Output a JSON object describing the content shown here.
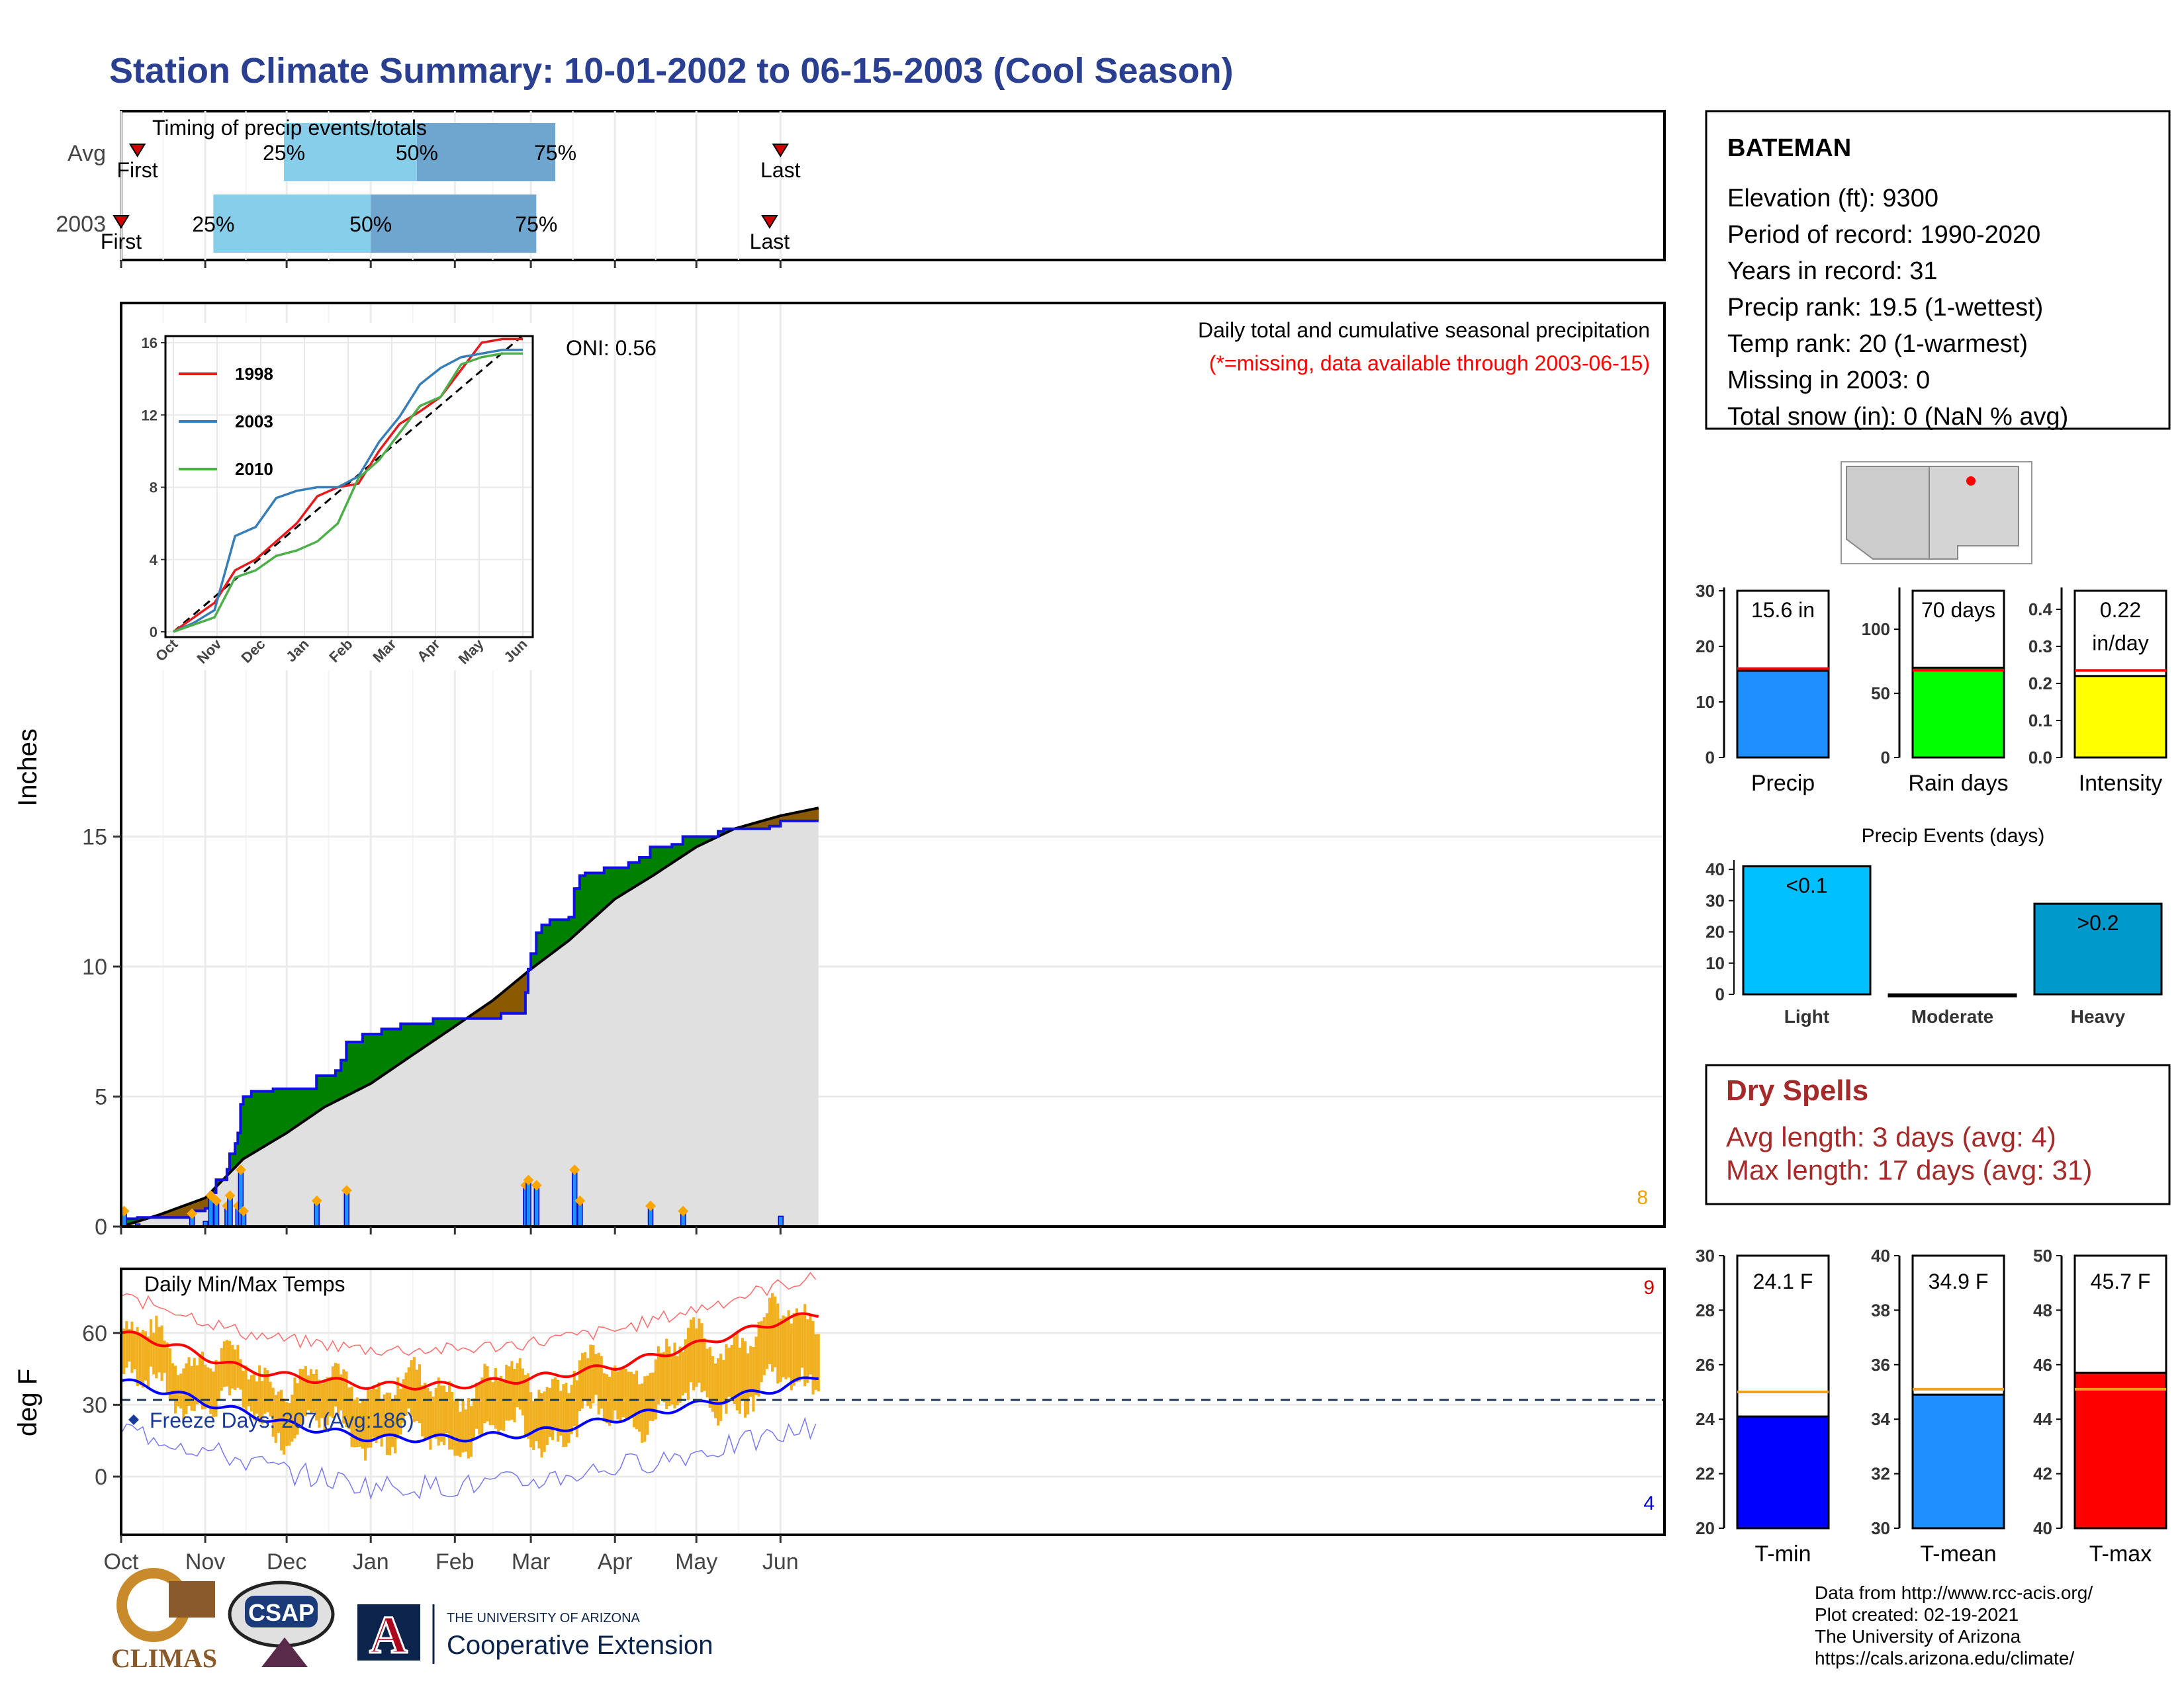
{
  "title": "Station Climate Summary: 10-01-2002 to 06-15-2003 (Cool Season)",
  "colors": {
    "title": "#2a3f8f",
    "precip_blue": "#1f8fff",
    "green": "#008000",
    "brown": "#8b5a00",
    "grey_area": "#e0e0e0",
    "band_light": "#87ceeb",
    "band_dark": "#6ea6cf",
    "orange": "#f0b020",
    "red": "#ff0000",
    "blue": "#0000ff",
    "dry_red": "#a52a2a"
  },
  "timing_panel": {
    "label": "Timing of precip events/totals",
    "rows": [
      {
        "name": "Avg",
        "first_label": "First",
        "last_label": "Last",
        "p25": "25%",
        "p50": "50%",
        "p75": "75%",
        "first_date": "2002-10-07",
        "q25": "2002-11-30",
        "q50": "2003-01-18",
        "q75": "2003-03-10",
        "last_date": "2003-06-01"
      },
      {
        "name": "2003",
        "first_label": "First",
        "last_label": "Last",
        "p25": "25%",
        "p50": "50%",
        "p75": "75%",
        "first_date": "2002-10-01",
        "q25": "2002-11-04",
        "q50": "2003-01-01",
        "q75": "2003-03-03",
        "last_date": "2003-05-28"
      }
    ]
  },
  "precip_panel": {
    "ylabel": "Inches",
    "yticks": [
      0,
      5,
      10,
      15
    ],
    "heading": "Daily total and cumulative seasonal precipitation",
    "missing_note": "(*=missing, data available through 2003-06-15)",
    "oni_label": "ONI: 0.56",
    "corner_count": "8"
  },
  "inset": {
    "yticks": [
      0,
      4,
      8,
      12,
      16
    ],
    "xticks": [
      "Oct",
      "Nov",
      "Dec",
      "Jan",
      "Feb",
      "Mar",
      "Apr",
      "May",
      "Jun"
    ],
    "legend": [
      {
        "name": "1998",
        "color": "#e41a1c"
      },
      {
        "name": "2003",
        "color": "#377eb8"
      },
      {
        "name": "2010",
        "color": "#4daf4a"
      }
    ]
  },
  "temp_panel": {
    "label": "Daily Min/Max Temps",
    "ylabel": "deg F",
    "yticks": [
      0,
      30,
      60
    ],
    "freeze_label": "Freeze Days: 207 (Avg:186)",
    "count_high": "9",
    "count_low": "4"
  },
  "xaxis_months": [
    "Oct",
    "Nov",
    "Dec",
    "Jan",
    "Feb",
    "Mar",
    "Apr",
    "May",
    "Jun"
  ],
  "station": {
    "name": "BATEMAN",
    "lines": [
      "Elevation (ft): 9300",
      "Period of record: 1990-2020",
      "Years in record: 31",
      "Precip rank: 19.5 (1-wettest)",
      "Temp rank: 20 (1-warmest)",
      "Missing in 2003: 0",
      "Total snow (in): 0 (NaN % avg)"
    ]
  },
  "summary_bars": [
    {
      "label": "Precip",
      "value_text": "15.6 in",
      "value": 15.6,
      "avg": 16.0,
      "yticks": [
        0,
        10,
        20,
        30
      ],
      "ymax": 30,
      "color": "#1f8fff"
    },
    {
      "label": "Rain days",
      "value_text": "70 days",
      "value": 70,
      "avg": 68,
      "yticks": [
        0,
        50,
        100
      ],
      "ymax": 130,
      "color": "#00ff00"
    },
    {
      "label": "Intensity",
      "value_text": "0.22 in/day",
      "value_text_1": "0.22",
      "value_text_2": "in/day",
      "value": 0.22,
      "avg": 0.235,
      "yticks": [
        "0.0",
        "0.1",
        "0.2",
        "0.3",
        "0.4"
      ],
      "ymax": 0.45,
      "color": "#ffff00"
    }
  ],
  "precip_events": {
    "title": "Precip Events (days)",
    "yticks": [
      0,
      10,
      20,
      30,
      40
    ],
    "categories": [
      "Light",
      "Moderate",
      "Heavy"
    ],
    "values": [
      41,
      0,
      29
    ],
    "bar_labels": [
      "<0.1",
      "",
      ">0.2"
    ],
    "colors": [
      "#00bfff",
      "#00bfff",
      "#0099cc"
    ]
  },
  "dry_spells": {
    "title": "Dry Spells",
    "avg_line": "Avg length: 3 days (avg: 4)",
    "max_line": "Max length: 17 days (avg: 31)"
  },
  "temp_bars": [
    {
      "label": "T-min",
      "value_text": "24.1 F",
      "value": 24.1,
      "avg": 25.0,
      "ylim": [
        20,
        30
      ],
      "yticks": [
        20,
        22,
        24,
        26,
        28,
        30
      ],
      "color": "#0000ff"
    },
    {
      "label": "T-mean",
      "value_text": "34.9 F",
      "value": 34.9,
      "avg": 35.1,
      "ylim": [
        30,
        40
      ],
      "yticks": [
        30,
        32,
        34,
        36,
        38,
        40
      ],
      "color": "#1f8fff"
    },
    {
      "label": "T-max",
      "value_text": "45.7 F",
      "value": 45.7,
      "avg": 45.1,
      "ylim": [
        40,
        50
      ],
      "yticks": [
        40,
        42,
        44,
        46,
        48,
        50
      ],
      "color": "#ff0000"
    }
  ],
  "logos": {
    "climas": "CLIMAS",
    "csap": "CSAP",
    "ua_small": "THE UNIVERSITY OF ARIZONA",
    "ua_big": "Cooperative Extension",
    "ua_letter": "A"
  },
  "footer": [
    "Data from http://www.rcc-acis.org/",
    "Plot created: 02-19-2021",
    "The University of Arizona",
    "https://cals.arizona.edu/climate/"
  ],
  "chart_data": {
    "type": "area",
    "title": "Station Climate Summary: 10-01-2002 to 06-15-2003 (Cool Season)",
    "ylabel": "Inches",
    "ylim": [
      0,
      17.5
    ],
    "x_range": [
      "2002-10-01",
      "2003-06-15"
    ],
    "series": [
      {
        "name": "2003",
        "points": [
          [
            "2002-10-01",
            0
          ],
          [
            "2002-10-02",
            0.3
          ],
          [
            "2002-10-06",
            0.3
          ],
          [
            "2002-10-07",
            0.35
          ],
          [
            "2002-10-25",
            0.35
          ],
          [
            "2002-10-27",
            0.6
          ],
          [
            "2002-11-01",
            0.7
          ],
          [
            "2002-11-03",
            1.3
          ],
          [
            "2002-11-05",
            1.8
          ],
          [
            "2002-11-09",
            2.2
          ],
          [
            "2002-11-10",
            2.8
          ],
          [
            "2002-11-12",
            3.2
          ],
          [
            "2002-11-13",
            3.6
          ],
          [
            "2002-11-14",
            4.7
          ],
          [
            "2002-11-15",
            5.0
          ],
          [
            "2002-11-18",
            5.2
          ],
          [
            "2002-11-26",
            5.3
          ],
          [
            "2002-12-11",
            5.3
          ],
          [
            "2002-12-12",
            5.8
          ],
          [
            "2002-12-18",
            5.8
          ],
          [
            "2002-12-19",
            6.0
          ],
          [
            "2002-12-21",
            6.4
          ],
          [
            "2002-12-23",
            7.1
          ],
          [
            "2002-12-29",
            7.4
          ],
          [
            "2003-01-05",
            7.6
          ],
          [
            "2003-01-12",
            7.8
          ],
          [
            "2003-01-18",
            7.8
          ],
          [
            "2003-01-24",
            8.0
          ],
          [
            "2003-02-02",
            8.0
          ],
          [
            "2003-02-07",
            8.0
          ],
          [
            "2003-02-18",
            8.2
          ],
          [
            "2003-02-27",
            9.0
          ],
          [
            "2003-02-28",
            9.9
          ],
          [
            "2003-03-01",
            10.5
          ],
          [
            "2003-03-03",
            11.3
          ],
          [
            "2003-03-05",
            11.6
          ],
          [
            "2003-03-08",
            11.8
          ],
          [
            "2003-03-15",
            11.9
          ],
          [
            "2003-03-17",
            13.0
          ],
          [
            "2003-03-19",
            13.5
          ],
          [
            "2003-03-21",
            13.6
          ],
          [
            "2003-03-28",
            13.8
          ],
          [
            "2003-04-06",
            14.0
          ],
          [
            "2003-04-10",
            14.2
          ],
          [
            "2003-04-14",
            14.6
          ],
          [
            "2003-04-22",
            14.7
          ],
          [
            "2003-04-26",
            15.0
          ],
          [
            "2003-05-09",
            15.2
          ],
          [
            "2003-05-11",
            15.3
          ],
          [
            "2003-05-20",
            15.3
          ],
          [
            "2003-05-28",
            15.4
          ],
          [
            "2003-06-01",
            15.6
          ],
          [
            "2003-06-15",
            15.6
          ]
        ]
      },
      {
        "name": "Average",
        "points": [
          [
            "2002-10-01",
            0
          ],
          [
            "2002-10-15",
            0.45
          ],
          [
            "2002-11-01",
            1.1
          ],
          [
            "2002-11-15",
            2.6
          ],
          [
            "2002-12-01",
            3.6
          ],
          [
            "2002-12-15",
            4.6
          ],
          [
            "2003-01-01",
            5.5
          ],
          [
            "2003-01-15",
            6.5
          ],
          [
            "2003-02-01",
            7.7
          ],
          [
            "2003-02-15",
            8.7
          ],
          [
            "2003-03-01",
            9.9
          ],
          [
            "2003-03-15",
            11.0
          ],
          [
            "2003-04-01",
            12.6
          ],
          [
            "2003-04-15",
            13.5
          ],
          [
            "2003-05-01",
            14.6
          ],
          [
            "2003-05-15",
            15.3
          ],
          [
            "2003-06-01",
            15.8
          ],
          [
            "2003-06-15",
            16.1
          ]
        ]
      }
    ],
    "daily_precip": [
      [
        "2002-10-02",
        0.3
      ],
      [
        "2002-10-07",
        0.05
      ],
      [
        "2002-10-27",
        0.25
      ],
      [
        "2002-11-01",
        0.1
      ],
      [
        "2002-11-03",
        0.6
      ],
      [
        "2002-11-05",
        0.5
      ],
      [
        "2002-11-09",
        0.4
      ],
      [
        "2002-11-10",
        0.6
      ],
      [
        "2002-11-13",
        0.4
      ],
      [
        "2002-11-14",
        1.1
      ],
      [
        "2002-11-15",
        0.3
      ],
      [
        "2002-12-12",
        0.5
      ],
      [
        "2002-12-23",
        0.7
      ],
      [
        "2003-02-27",
        0.8
      ],
      [
        "2003-02-28",
        0.9
      ],
      [
        "2003-03-03",
        0.8
      ],
      [
        "2003-03-17",
        1.1
      ],
      [
        "2003-03-19",
        0.5
      ],
      [
        "2003-04-14",
        0.4
      ],
      [
        "2003-04-26",
        0.3
      ],
      [
        "2003-06-01",
        0.2
      ]
    ],
    "inset": {
      "type": "line",
      "x_range": [
        "Oct",
        "Jun"
      ],
      "ylim": [
        0,
        16
      ],
      "series": [
        {
          "name": "1998",
          "values": [
            0,
            0.8,
            1.6,
            3.4,
            4.0,
            5.0,
            6.0,
            7.5,
            8.0,
            8.2,
            10.0,
            11.5,
            12.2,
            13.0,
            14.5,
            16.0,
            16.2,
            16.2
          ]
        },
        {
          "name": "2003",
          "values": [
            0,
            0.5,
            1.2,
            5.3,
            5.8,
            7.4,
            7.8,
            8.0,
            8.0,
            8.6,
            10.5,
            11.9,
            13.7,
            14.6,
            15.2,
            15.4,
            15.6,
            15.6
          ]
        },
        {
          "name": "2010",
          "values": [
            0,
            0.4,
            0.8,
            3.0,
            3.4,
            4.2,
            4.5,
            5.0,
            6.0,
            8.5,
            9.5,
            11.0,
            12.5,
            13.0,
            14.8,
            15.2,
            15.4,
            15.4
          ]
        }
      ]
    },
    "temperature": {
      "ylabel": "deg F",
      "ylim": [
        -15,
        80
      ],
      "avg_max": [
        [
          "2002-10-01",
          60
        ],
        [
          "2002-10-20",
          55
        ],
        [
          "2002-11-01",
          50
        ],
        [
          "2002-11-15",
          45
        ],
        [
          "2002-12-01",
          42
        ],
        [
          "2003-01-01",
          38
        ],
        [
          "2003-02-01",
          38
        ],
        [
          "2003-03-01",
          41
        ],
        [
          "2003-04-01",
          46
        ],
        [
          "2003-05-01",
          55
        ],
        [
          "2003-06-01",
          65
        ],
        [
          "2003-06-15",
          68
        ]
      ],
      "avg_min": [
        [
          "2002-10-01",
          40
        ],
        [
          "2002-10-20",
          35
        ],
        [
          "2002-11-01",
          31
        ],
        [
          "2002-12-01",
          22
        ],
        [
          "2003-01-01",
          16
        ],
        [
          "2003-02-01",
          16
        ],
        [
          "2003-03-01",
          18
        ],
        [
          "2003-04-01",
          24
        ],
        [
          "2003-05-01",
          30
        ],
        [
          "2003-06-01",
          37
        ],
        [
          "2003-06-15",
          42
        ]
      ],
      "freeze_threshold": 32
    },
    "summary_bars": {
      "categories": [
        "Precip",
        "Rain days",
        "Intensity"
      ],
      "values": [
        15.6,
        70,
        0.22
      ]
    },
    "precip_events": {
      "categories": [
        "Light",
        "Moderate",
        "Heavy"
      ],
      "values": [
        41,
        0,
        29
      ]
    },
    "temp_bars": {
      "categories": [
        "T-min",
        "T-mean",
        "T-max"
      ],
      "values": [
        24.1,
        34.9,
        45.7
      ]
    }
  }
}
